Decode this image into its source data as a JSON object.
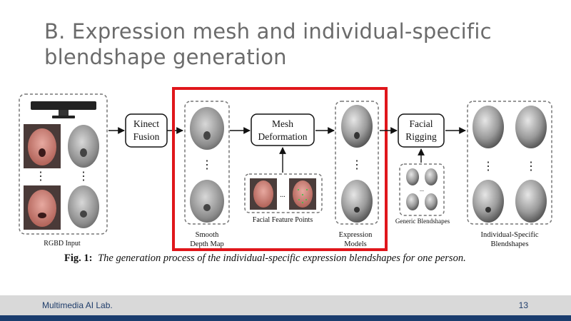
{
  "slide": {
    "title": "B. Expression mesh and individual-specific blendshape generation"
  },
  "figure": {
    "stages": {
      "rgbd_input": "RGBD Input",
      "kinect_fusion": [
        "Kinect",
        "Fusion"
      ],
      "smooth_depth_map": [
        "Smooth",
        "Depth Map"
      ],
      "mesh_deformation": [
        "Mesh",
        "Deformation"
      ],
      "facial_feature_points": "Facial Feature Points",
      "expression_models": [
        "Expression",
        "Models"
      ],
      "facial_rigging": [
        "Facial",
        "Rigging"
      ],
      "generic_blendshapes": "Generic Blendshapes",
      "individual_blendshapes": [
        "Individual-Specific",
        "Blendshapes"
      ]
    },
    "ellipsis": "⋮",
    "hdots": "...",
    "highlight_color": "#e0161b"
  },
  "caption": {
    "label": "Fig. 1:",
    "text": "The generation process of the individual-specific expression blendshapes for one person."
  },
  "footer": {
    "lab": "Multimedia AI Lab.",
    "page": "13"
  }
}
